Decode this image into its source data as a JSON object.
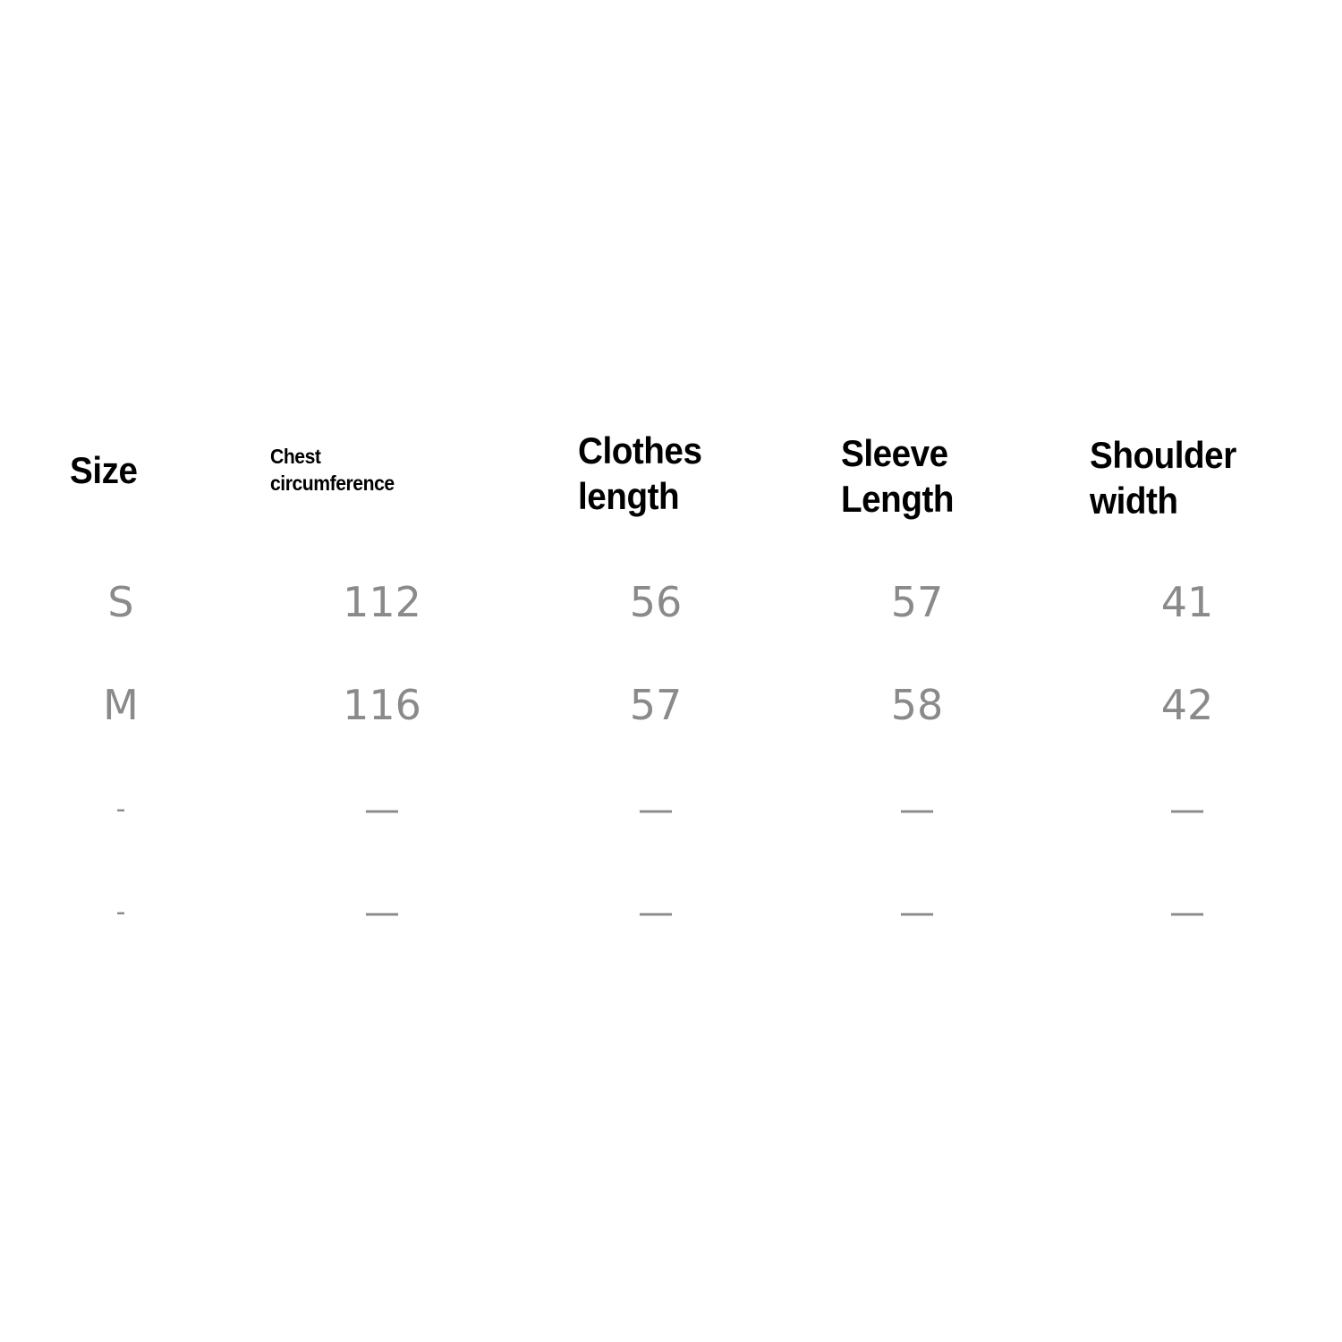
{
  "headers": [
    {
      "line1": "Size",
      "line2": ""
    },
    {
      "line1": "Chest",
      "line2": "circumference"
    },
    {
      "line1": "Clothes",
      "line2": "length"
    },
    {
      "line1": "Sleeve",
      "line2": "Length"
    },
    {
      "line1": "Shoulder",
      "line2": "width"
    }
  ],
  "rows": [
    [
      "S",
      "112",
      "56",
      "57",
      "41"
    ],
    [
      "M",
      "116",
      "57",
      "58",
      "42"
    ],
    [
      "-",
      "—",
      "—",
      "—",
      "—"
    ],
    [
      "-",
      "—",
      "—",
      "—",
      "—"
    ]
  ]
}
